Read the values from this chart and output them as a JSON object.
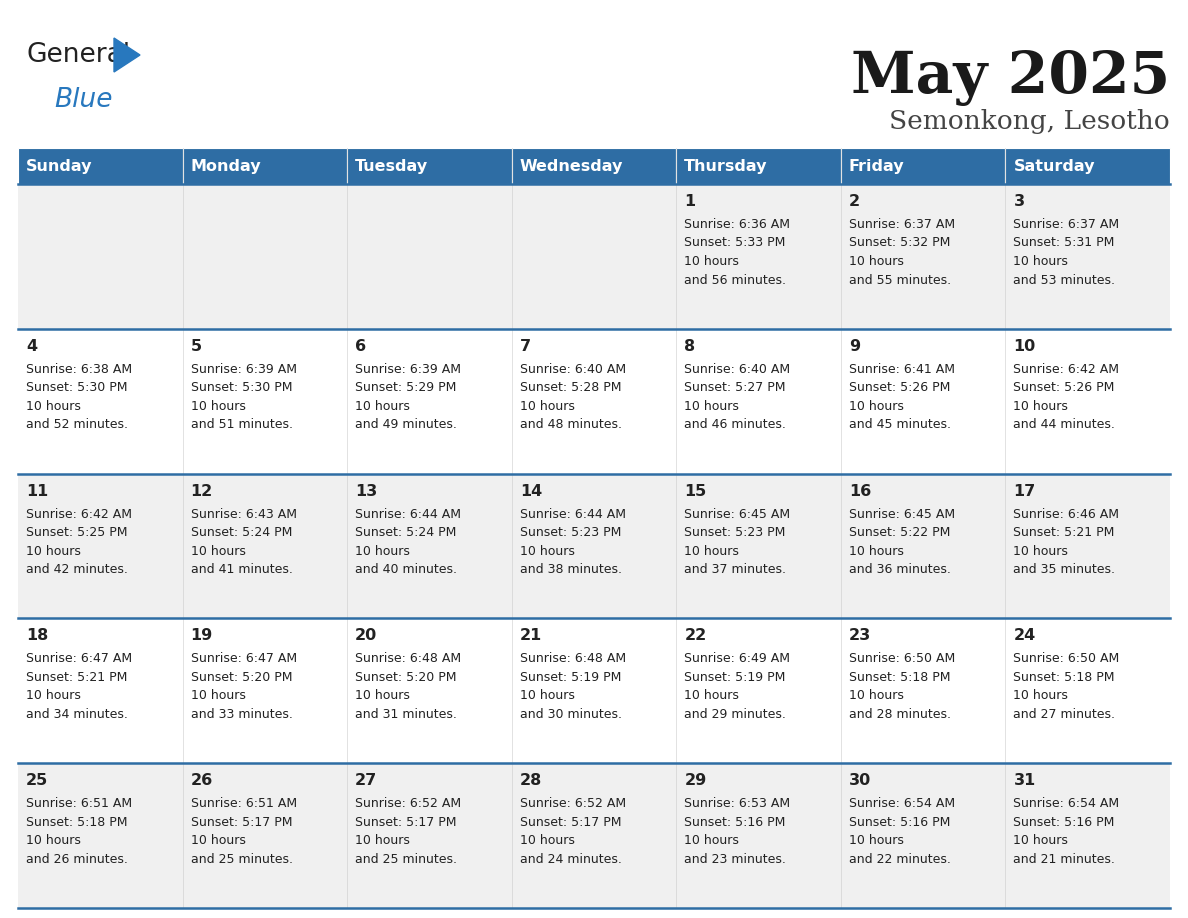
{
  "title": "May 2025",
  "subtitle": "Semonkong, Lesotho",
  "days_of_week": [
    "Sunday",
    "Monday",
    "Tuesday",
    "Wednesday",
    "Thursday",
    "Friday",
    "Saturday"
  ],
  "header_bg": "#2E6DA4",
  "header_text": "#FFFFFF",
  "row_bg_odd": "#F0F0F0",
  "row_bg_even": "#FFFFFF",
  "cell_text_color": "#222222",
  "row_separator_color": "#2E6DA4",
  "title_color": "#1a1a1a",
  "subtitle_color": "#444444",
  "logo_general_color": "#222222",
  "logo_blue_color": "#2878BE",
  "calendar_data": [
    [
      {
        "day": null
      },
      {
        "day": null
      },
      {
        "day": null
      },
      {
        "day": null
      },
      {
        "day": 1,
        "sunrise": "6:36 AM",
        "sunset": "5:33 PM",
        "daylight": "10 hours and 56 minutes."
      },
      {
        "day": 2,
        "sunrise": "6:37 AM",
        "sunset": "5:32 PM",
        "daylight": "10 hours and 55 minutes."
      },
      {
        "day": 3,
        "sunrise": "6:37 AM",
        "sunset": "5:31 PM",
        "daylight": "10 hours and 53 minutes."
      }
    ],
    [
      {
        "day": 4,
        "sunrise": "6:38 AM",
        "sunset": "5:30 PM",
        "daylight": "10 hours and 52 minutes."
      },
      {
        "day": 5,
        "sunrise": "6:39 AM",
        "sunset": "5:30 PM",
        "daylight": "10 hours and 51 minutes."
      },
      {
        "day": 6,
        "sunrise": "6:39 AM",
        "sunset": "5:29 PM",
        "daylight": "10 hours and 49 minutes."
      },
      {
        "day": 7,
        "sunrise": "6:40 AM",
        "sunset": "5:28 PM",
        "daylight": "10 hours and 48 minutes."
      },
      {
        "day": 8,
        "sunrise": "6:40 AM",
        "sunset": "5:27 PM",
        "daylight": "10 hours and 46 minutes."
      },
      {
        "day": 9,
        "sunrise": "6:41 AM",
        "sunset": "5:26 PM",
        "daylight": "10 hours and 45 minutes."
      },
      {
        "day": 10,
        "sunrise": "6:42 AM",
        "sunset": "5:26 PM",
        "daylight": "10 hours and 44 minutes."
      }
    ],
    [
      {
        "day": 11,
        "sunrise": "6:42 AM",
        "sunset": "5:25 PM",
        "daylight": "10 hours and 42 minutes."
      },
      {
        "day": 12,
        "sunrise": "6:43 AM",
        "sunset": "5:24 PM",
        "daylight": "10 hours and 41 minutes."
      },
      {
        "day": 13,
        "sunrise": "6:44 AM",
        "sunset": "5:24 PM",
        "daylight": "10 hours and 40 minutes."
      },
      {
        "day": 14,
        "sunrise": "6:44 AM",
        "sunset": "5:23 PM",
        "daylight": "10 hours and 38 minutes."
      },
      {
        "day": 15,
        "sunrise": "6:45 AM",
        "sunset": "5:23 PM",
        "daylight": "10 hours and 37 minutes."
      },
      {
        "day": 16,
        "sunrise": "6:45 AM",
        "sunset": "5:22 PM",
        "daylight": "10 hours and 36 minutes."
      },
      {
        "day": 17,
        "sunrise": "6:46 AM",
        "sunset": "5:21 PM",
        "daylight": "10 hours and 35 minutes."
      }
    ],
    [
      {
        "day": 18,
        "sunrise": "6:47 AM",
        "sunset": "5:21 PM",
        "daylight": "10 hours and 34 minutes."
      },
      {
        "day": 19,
        "sunrise": "6:47 AM",
        "sunset": "5:20 PM",
        "daylight": "10 hours and 33 minutes."
      },
      {
        "day": 20,
        "sunrise": "6:48 AM",
        "sunset": "5:20 PM",
        "daylight": "10 hours and 31 minutes."
      },
      {
        "day": 21,
        "sunrise": "6:48 AM",
        "sunset": "5:19 PM",
        "daylight": "10 hours and 30 minutes."
      },
      {
        "day": 22,
        "sunrise": "6:49 AM",
        "sunset": "5:19 PM",
        "daylight": "10 hours and 29 minutes."
      },
      {
        "day": 23,
        "sunrise": "6:50 AM",
        "sunset": "5:18 PM",
        "daylight": "10 hours and 28 minutes."
      },
      {
        "day": 24,
        "sunrise": "6:50 AM",
        "sunset": "5:18 PM",
        "daylight": "10 hours and 27 minutes."
      }
    ],
    [
      {
        "day": 25,
        "sunrise": "6:51 AM",
        "sunset": "5:18 PM",
        "daylight": "10 hours and 26 minutes."
      },
      {
        "day": 26,
        "sunrise": "6:51 AM",
        "sunset": "5:17 PM",
        "daylight": "10 hours and 25 minutes."
      },
      {
        "day": 27,
        "sunrise": "6:52 AM",
        "sunset": "5:17 PM",
        "daylight": "10 hours and 25 minutes."
      },
      {
        "day": 28,
        "sunrise": "6:52 AM",
        "sunset": "5:17 PM",
        "daylight": "10 hours and 24 minutes."
      },
      {
        "day": 29,
        "sunrise": "6:53 AM",
        "sunset": "5:16 PM",
        "daylight": "10 hours and 23 minutes."
      },
      {
        "day": 30,
        "sunrise": "6:54 AM",
        "sunset": "5:16 PM",
        "daylight": "10 hours and 22 minutes."
      },
      {
        "day": 31,
        "sunrise": "6:54 AM",
        "sunset": "5:16 PM",
        "daylight": "10 hours and 21 minutes."
      }
    ]
  ]
}
